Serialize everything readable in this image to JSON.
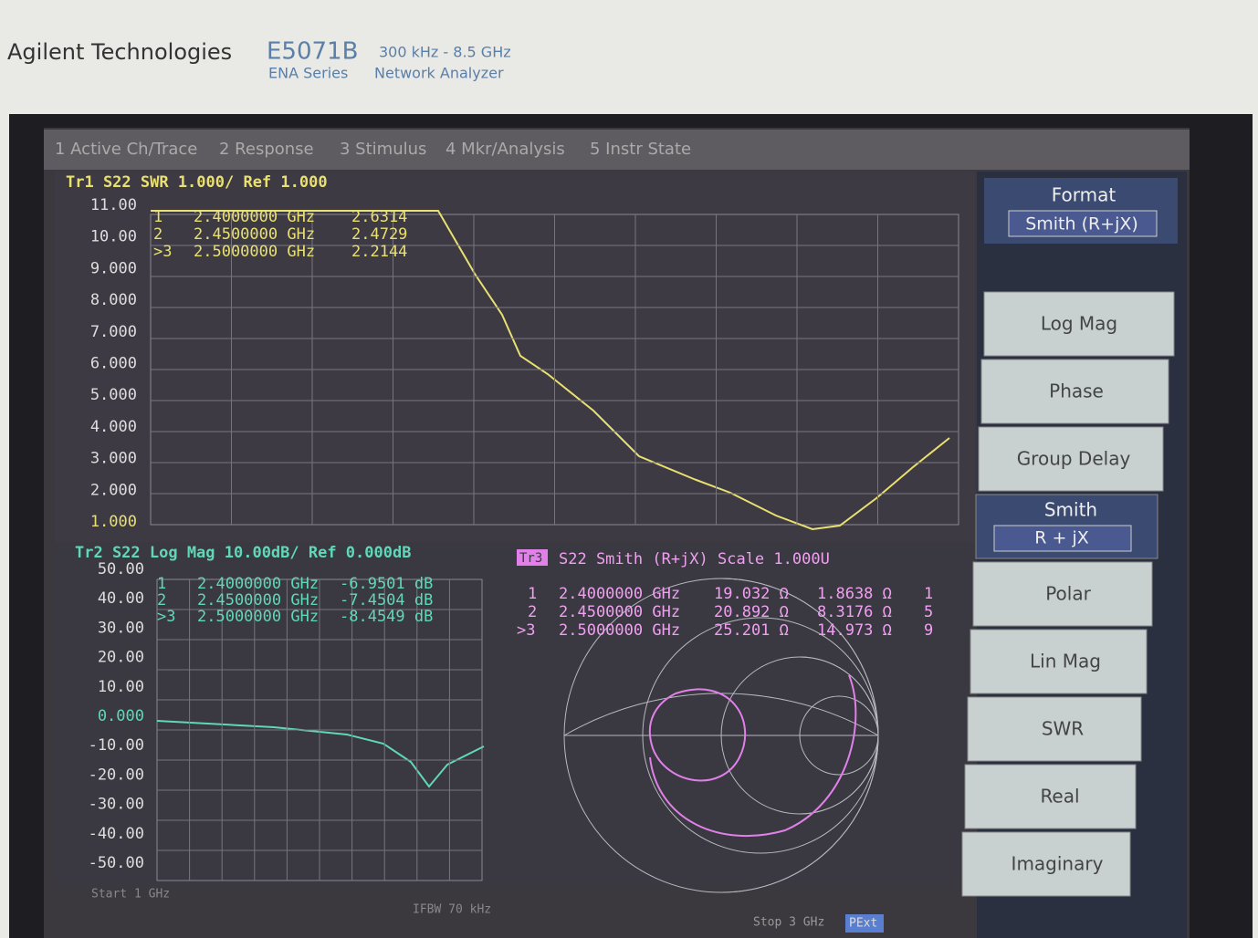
{
  "header": {
    "brand": "Agilent Technologies",
    "model": "E5071B",
    "series": "ENA Series",
    "range": "300 kHz - 8.5 GHz",
    "product": "Network Analyzer"
  },
  "menu": [
    "1 Active Ch/Trace",
    "2 Response",
    "3 Stimulus",
    "4 Mkr/Analysis",
    "5 Instr State"
  ],
  "trace1": {
    "header": "Tr1 S22 SWR 1.000/ Ref 1.000",
    "yticks": [
      "11.00",
      "10.00",
      "9.000",
      "8.000",
      "7.000",
      "6.000",
      "5.000",
      "4.000",
      "3.000",
      "2.000",
      "1.000"
    ],
    "markers": [
      [
        "1",
        "2.4000000 GHz",
        "2.6314"
      ],
      [
        "2",
        "2.4500000 GHz",
        "2.4729"
      ],
      [
        ">3",
        "2.5000000 GHz",
        "2.2144"
      ]
    ]
  },
  "trace2": {
    "header": "Tr2 S22 Log Mag 10.00dB/ Ref 0.000dB",
    "yticks": [
      "50.00",
      "40.00",
      "30.00",
      "20.00",
      "10.00",
      "0.000",
      "-10.00",
      "-20.00",
      "-30.00",
      "-40.00",
      "-50.00"
    ],
    "markers": [
      [
        "1",
        "2.4000000 GHz",
        "-6.9501 dB"
      ],
      [
        "2",
        "2.4500000 GHz",
        "-7.4504 dB"
      ],
      [
        ">3",
        "2.5000000 GHz",
        "-8.4549 dB"
      ]
    ]
  },
  "trace3": {
    "tag": "Tr3",
    "header": "S22 Smith (R+jX) Scale 1.000U",
    "markers": [
      [
        "1",
        "2.4000000 GHz",
        "19.032 Ω",
        "1.8638 Ω",
        "1"
      ],
      [
        "2",
        "2.4500000 GHz",
        "20.892 Ω",
        "8.3176 Ω",
        "5"
      ],
      [
        ">3",
        "2.5000000 GHz",
        "25.201 Ω",
        "14.973 Ω",
        "9"
      ]
    ]
  },
  "footer": {
    "start": "Start 1 GHz",
    "ifbw": "IFBW 70 kHz",
    "stop": "Stop 3 GHz",
    "pext": "PExt"
  },
  "softkeys": {
    "title": "Format",
    "current": "Smith (R+jX)",
    "buttons": [
      "Log Mag",
      "Phase",
      "Group Delay",
      "Smith",
      "Polar",
      "Lin Mag",
      "SWR",
      "Real",
      "Imaginary"
    ],
    "smith_sub": "R + jX"
  }
}
